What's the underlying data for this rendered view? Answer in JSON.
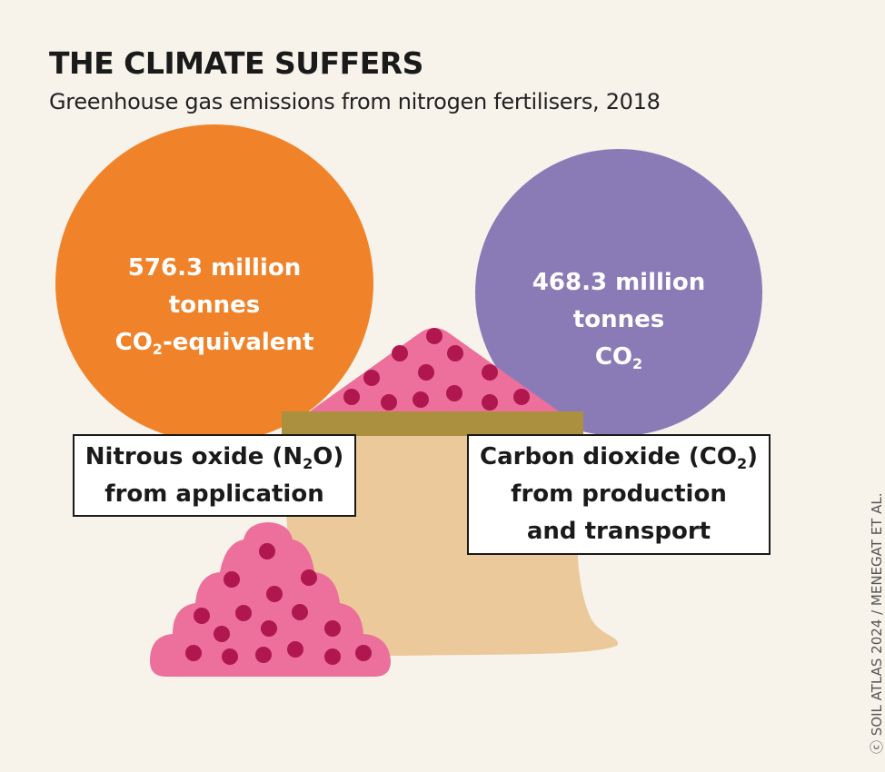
{
  "header": {
    "title": "THE CLIMATE SUFFERS",
    "subtitle": "Greenhouse gas emissions from nitrogen fertilisers, 2018"
  },
  "chart_data": {
    "type": "bubble",
    "title": "THE CLIMATE SUFFERS",
    "subtitle": "Greenhouse gas emissions from nitrogen fertilisers, 2018",
    "series": [
      {
        "name": "Nitrous oxide (N2O) from application",
        "value": 576.3,
        "unit": "million tonnes CO2-equivalent",
        "color": "#f0832a"
      },
      {
        "name": "Carbon dioxide (CO2) from production and transport",
        "value": 468.3,
        "unit": "million tonnes CO2",
        "color": "#8a7bb7"
      }
    ]
  },
  "bubbles": {
    "n2o": {
      "line1": "576.3 million",
      "line2": "tonnes",
      "line3a": "CO",
      "line3sub": "2",
      "line3b": "-equivalent"
    },
    "co2": {
      "line1": "468.3 million",
      "line2": "tonnes",
      "line3a": "CO",
      "line3sub": "2"
    }
  },
  "labels": {
    "n2o": {
      "a": "Nitrous oxide (N",
      "sub": "2",
      "b": "O)",
      "line2": "from application"
    },
    "co2": {
      "a": "Carbon dioxide (CO",
      "sub": "2",
      "b": ")",
      "line2": "from production",
      "line3": "and transport"
    }
  },
  "credit": "ⓒ SOIL ATLAS 2024 / MENEGAT ET AL.",
  "colors": {
    "background": "#f7f3ea",
    "pink": "#ec6f9c",
    "dots": "#b0174f",
    "bag": "#ebc99b",
    "bag_band": "#ab9040"
  }
}
